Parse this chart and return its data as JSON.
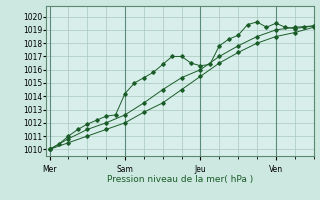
{
  "bg_color": "#cce8e0",
  "plot_bg_color": "#d8eeea",
  "grid_color": "#a8c8c0",
  "line_color": "#1a5c28",
  "xlabel": "Pression niveau de la mer( hPa )",
  "ylim": [
    1009.5,
    1020.8
  ],
  "yticks": [
    1010,
    1011,
    1012,
    1013,
    1014,
    1015,
    1016,
    1017,
    1018,
    1019,
    1020
  ],
  "day_labels": [
    "Mer",
    "Sam",
    "Jeu",
    "Ven"
  ],
  "day_positions": [
    0,
    24,
    48,
    72
  ],
  "xlim": [
    -1,
    84
  ],
  "series1_x": [
    0,
    3,
    6,
    9,
    12,
    15,
    18,
    21,
    24,
    27,
    30,
    33,
    36,
    39,
    42,
    45,
    48,
    51,
    54,
    57,
    60,
    63,
    66,
    69,
    72,
    75,
    78,
    81,
    84
  ],
  "series1_y": [
    1010.0,
    1010.4,
    1011.0,
    1011.5,
    1011.9,
    1012.2,
    1012.5,
    1012.6,
    1014.2,
    1015.0,
    1015.4,
    1015.8,
    1016.4,
    1017.0,
    1017.0,
    1016.5,
    1016.3,
    1016.4,
    1017.8,
    1018.3,
    1018.6,
    1019.4,
    1019.6,
    1019.2,
    1019.5,
    1019.2,
    1019.1,
    1019.2,
    1019.3
  ],
  "series2_x": [
    0,
    6,
    12,
    18,
    24,
    30,
    36,
    42,
    48,
    54,
    60,
    66,
    72,
    78,
    84
  ],
  "series2_y": [
    1010.0,
    1010.8,
    1011.5,
    1012.0,
    1012.6,
    1013.5,
    1014.5,
    1015.4,
    1016.0,
    1017.0,
    1017.8,
    1018.5,
    1019.0,
    1019.2,
    1019.3
  ],
  "series3_x": [
    0,
    6,
    12,
    18,
    24,
    30,
    36,
    42,
    48,
    54,
    60,
    66,
    72,
    78,
    84
  ],
  "series3_y": [
    1010.0,
    1010.5,
    1011.0,
    1011.5,
    1012.0,
    1012.8,
    1013.5,
    1014.5,
    1015.5,
    1016.5,
    1017.3,
    1018.0,
    1018.5,
    1018.8,
    1019.2
  ]
}
